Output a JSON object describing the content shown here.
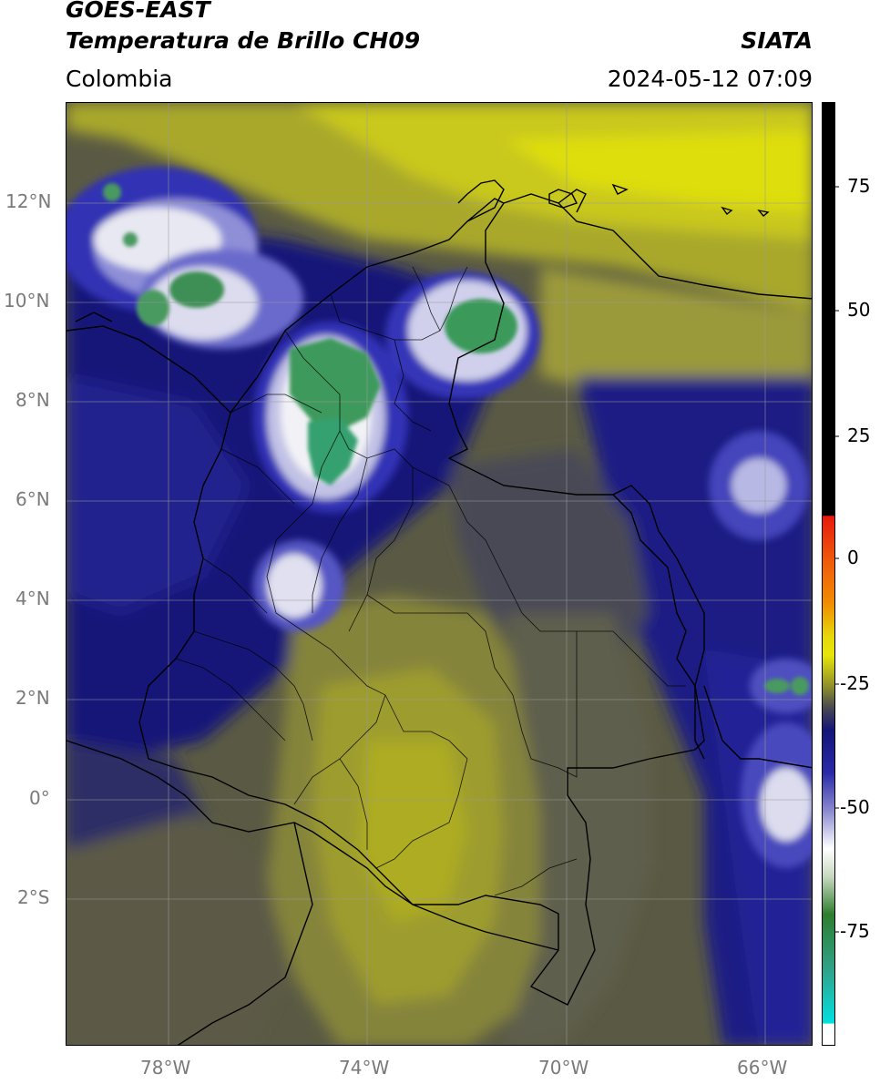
{
  "header": {
    "satellite": "GOES-EAST",
    "product": "Temperatura de Brillo CH09",
    "region": "Colombia",
    "agency": "SIATA",
    "datetime": "2024-05-12 07:09"
  },
  "map": {
    "lon_range": [
      -80,
      -65
    ],
    "lat_range": [
      -5,
      14
    ],
    "lon_ticks": [
      "78°W",
      "74°W",
      "70°W",
      "66°W"
    ],
    "lat_ticks": [
      "12°N",
      "10°N",
      "8°N",
      "6°N",
      "4°N",
      "2°N",
      "0°",
      "2°S"
    ],
    "gridlines": true
  },
  "colorbar": {
    "ticks": [
      "75",
      "50",
      "25",
      "0",
      "-25",
      "-50",
      "-75"
    ],
    "range": [
      -96,
      90
    ],
    "colors": {
      "black": "#000000",
      "red": "#e81a0c",
      "orange": "#f08c00",
      "yellow": "#e6e60a",
      "olive": "#8a8a2c",
      "gray": "#4a4a50",
      "navy": "#14147a",
      "blue": "#2a2aa8",
      "white": "#ffffff",
      "green": "#2e7d2e",
      "teal": "#2fa48c",
      "cyan": "#00e0e0"
    }
  },
  "map_colors": {
    "olive_dark": "#5c5c3c",
    "olive": "#7c7a38",
    "yellow_olive": "#9f9e2c",
    "yellow": "#c8c818",
    "bright_yellow": "#dcdc10",
    "navy": "#1a1a78",
    "blue": "#2a2aa0",
    "gray_blue": "#3e3e5c",
    "white": "#e8e8f0",
    "green": "#3c9a5a"
  }
}
